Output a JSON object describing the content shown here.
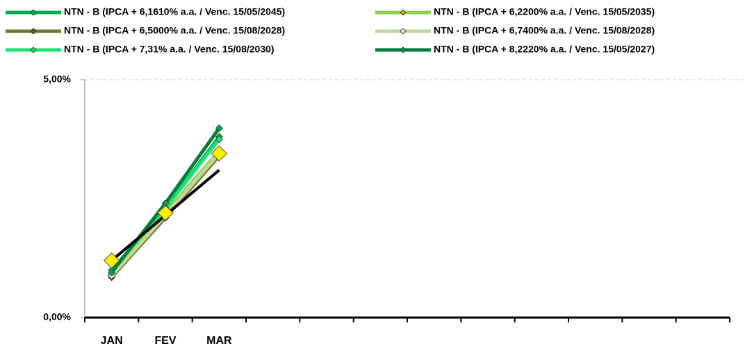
{
  "chart_data": {
    "type": "line",
    "categories": [
      "JAN",
      "FEV",
      "MAR",
      null,
      null,
      null,
      null,
      null,
      null,
      null,
      null,
      null
    ],
    "ylim": [
      0,
      5
    ],
    "yticks": [
      {
        "value": 0,
        "label": "0,00%"
      },
      {
        "value": 5,
        "label": "5,00%"
      }
    ],
    "grid": true,
    "legend": "top",
    "series": [
      {
        "name": "NTN - B  (IPCA + 6,1610% a.a. / Venc. 15/05/2045)",
        "color": "#00b050",
        "marker_color": "#00b050",
        "values": [
          0.9,
          2.3,
          3.8,
          null,
          null,
          null,
          null,
          null,
          null,
          null,
          null,
          null
        ]
      },
      {
        "name": "NTN - B  (IPCA + 6,2200% a.a. / Venc. 15/05/2035)",
        "color": "#92d050",
        "marker_color": "#e0a030",
        "values": [
          0.95,
          2.2,
          3.5,
          null,
          null,
          null,
          null,
          null,
          null,
          null,
          null,
          null
        ]
      },
      {
        "name": "NTN - B  (IPCA + 6,5000% a.a. / Venc. 15/08/2028)",
        "color": "#6b7d2e",
        "marker_color": "#4f6228",
        "values": [
          0.85,
          2.1,
          3.4,
          null,
          null,
          null,
          null,
          null,
          null,
          null,
          null,
          null
        ]
      },
      {
        "name": "NTN - B  (IPCA + 6,7400% a.a. / Venc. 15/08/2028)",
        "color": "#c3d69b",
        "marker_color": "#e8f0d0",
        "values": [
          0.88,
          2.15,
          3.45,
          null,
          null,
          null,
          null,
          null,
          null,
          null,
          null,
          null
        ]
      },
      {
        "name": "NTN - B  (IPCA + 7,31% a.a. / Venc. 15/08/2030)",
        "color": "#20e070",
        "marker_color": "#20e070",
        "values": [
          1.0,
          2.3,
          3.75,
          null,
          null,
          null,
          null,
          null,
          null,
          null,
          null,
          null
        ]
      },
      {
        "name": "NTN - B  (IPCA + 8,2220% a.a. / Venc. 15/05/2027)",
        "color": "#008040",
        "marker_color": "#00a050",
        "values": [
          0.95,
          2.4,
          3.98,
          null,
          null,
          null,
          null,
          null,
          null,
          null,
          null,
          null
        ]
      },
      {
        "color": "#000000",
        "values": [
          1.2,
          2.15,
          3.1,
          null,
          null,
          null,
          null,
          null,
          null,
          null,
          null,
          null
        ]
      },
      {
        "color": "#ffff00",
        "marker_color": "#ffee00",
        "marker_size": 11,
        "line": false,
        "values": [
          1.2,
          2.2,
          3.45,
          null,
          null,
          null,
          null,
          null,
          null,
          null,
          null,
          null
        ]
      }
    ]
  }
}
